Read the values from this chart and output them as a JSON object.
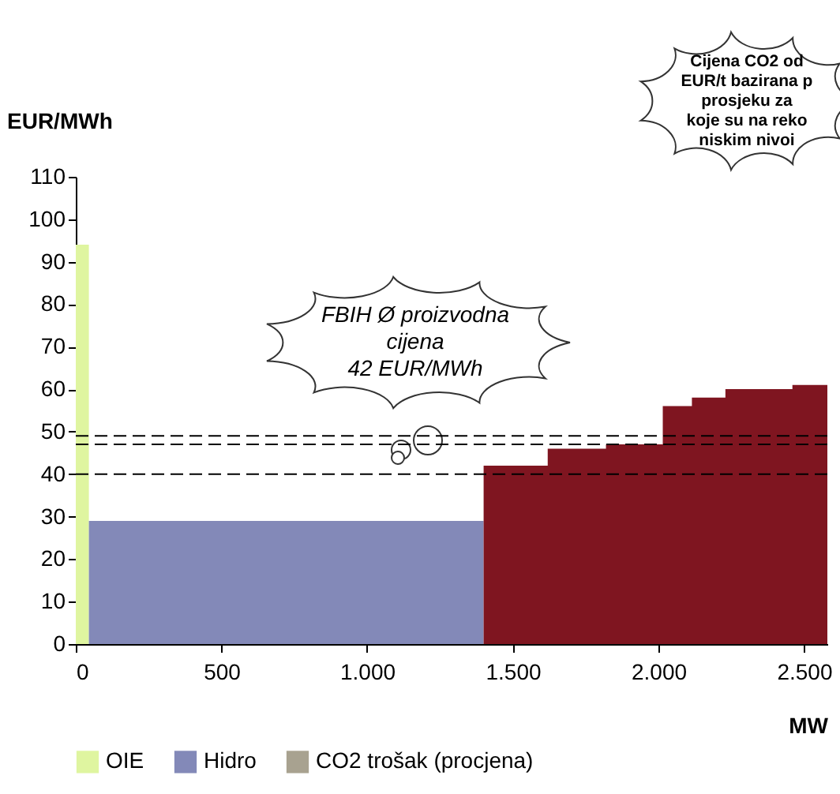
{
  "chart_data": {
    "type": "area",
    "xlabel": "MW",
    "ylabel": "EUR/MWh",
    "xlim": [
      0,
      2580
    ],
    "xticks": [
      0,
      500,
      {
        "value": 1000,
        "label": "1.000"
      },
      {
        "value": 1500,
        "label": "1.500"
      },
      {
        "value": 2000,
        "label": "2.000"
      },
      {
        "value": 2500,
        "label": "2.500"
      }
    ],
    "ylim": [
      0,
      110
    ],
    "yticks": [
      0,
      10,
      20,
      30,
      40,
      50,
      60,
      70,
      80,
      90,
      100,
      110
    ],
    "series": [
      {
        "name": "OIE",
        "color": "#dff5a0",
        "x": [
          0,
          45
        ],
        "values": [
          94,
          94
        ]
      },
      {
        "name": "Hidro",
        "color": "#8389b8",
        "x": [
          45,
          1400
        ],
        "values": [
          29,
          29
        ]
      },
      {
        "name": "CO2 trošak (procjena)",
        "color": "#a8a290"
      },
      {
        "color": "#7f1520",
        "x": [
          1400,
          1620,
          1820,
          2015,
          2115,
          2230,
          2460,
          2580
        ],
        "values": [
          42,
          46,
          47,
          56,
          58,
          60,
          61,
          61
        ]
      }
    ],
    "ref_lines": [
      {
        "axis": "y",
        "value": 49,
        "line_style": "dashed"
      },
      {
        "axis": "y",
        "value": 47,
        "line_style": "dashed"
      },
      {
        "axis": "y",
        "value": 40,
        "line_style": "dashed"
      }
    ],
    "annotations": [
      "FBIH Ø proizvodna\ncijena\n42 EUR/MWh",
      "Cijena CO2 od\nEUR/t bazirana p\nprosjeku za\nkoje su na reko\nniskim nivoi"
    ],
    "legend": "bottom",
    "grid": false
  }
}
